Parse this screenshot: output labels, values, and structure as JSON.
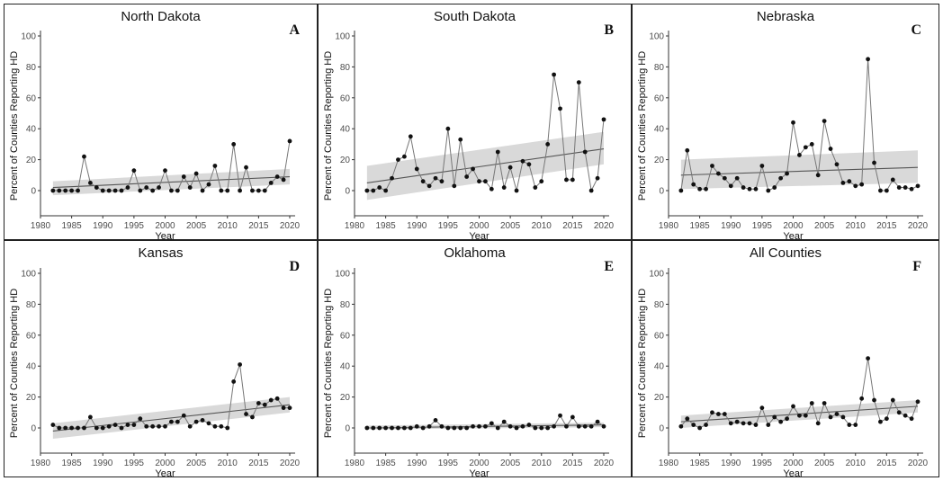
{
  "colors": {
    "points": "#111111",
    "series_line": "#777777",
    "trend_line": "#555555",
    "confidence_band": "#d9d9d9",
    "border": "#222222"
  },
  "chart_data": [
    {
      "type": "line",
      "title": "North Dakota",
      "letter": "A",
      "xlabel": "Year",
      "ylabel": "Percent of Counties Reporting HD",
      "xlim": [
        1980,
        2020
      ],
      "ylim": [
        0,
        100
      ],
      "xticks": [
        "1980",
        "1985",
        "1990",
        "1995",
        "2000",
        "2005",
        "2010",
        "2015",
        "2020"
      ],
      "yticks": [
        "0",
        "20",
        "40",
        "60",
        "80",
        "100"
      ],
      "x": [
        1982,
        1983,
        1984,
        1985,
        1986,
        1987,
        1988,
        1989,
        1990,
        1991,
        1992,
        1993,
        1994,
        1995,
        1996,
        1997,
        1998,
        1999,
        2000,
        2001,
        2002,
        2003,
        2004,
        2005,
        2006,
        2007,
        2008,
        2009,
        2010,
        2011,
        2012,
        2013,
        2014,
        2015,
        2016,
        2017,
        2018,
        2019,
        2020
      ],
      "y": [
        0,
        0,
        0,
        0,
        0,
        22,
        5,
        2,
        0,
        0,
        0,
        0,
        2,
        13,
        0,
        2,
        0,
        2,
        13,
        0,
        0,
        9,
        2,
        11,
        0,
        4,
        16,
        0,
        0,
        30,
        0,
        15,
        0,
        0,
        0,
        5,
        9,
        7,
        32
      ],
      "trend": {
        "start": [
          1982,
          2
        ],
        "end": [
          2020,
          9
        ]
      },
      "ci_band": {
        "lower_start": -3,
        "upper_start": 6,
        "lower_end": 4,
        "upper_end": 14
      },
      "grid": false,
      "legend": "none"
    },
    {
      "type": "line",
      "title": "South Dakota",
      "letter": "B",
      "xlabel": "Year",
      "ylabel": "Percent of Counties Reporting HD",
      "xlim": [
        1980,
        2020
      ],
      "ylim": [
        0,
        100
      ],
      "xticks": [
        "1980",
        "1985",
        "1990",
        "1995",
        "2000",
        "2005",
        "2010",
        "2015",
        "2020"
      ],
      "yticks": [
        "0",
        "20",
        "40",
        "60",
        "80",
        "100"
      ],
      "x": [
        1982,
        1983,
        1984,
        1985,
        1986,
        1987,
        1988,
        1989,
        1990,
        1991,
        1992,
        1993,
        1994,
        1995,
        1996,
        1997,
        1998,
        1999,
        2000,
        2001,
        2002,
        2003,
        2004,
        2005,
        2006,
        2007,
        2008,
        2009,
        2010,
        2011,
        2012,
        2013,
        2014,
        2015,
        2016,
        2017,
        2018,
        2019,
        2020
      ],
      "y": [
        0,
        0,
        2,
        0,
        8,
        20,
        22,
        35,
        14,
        6,
        3,
        8,
        6,
        40,
        3,
        33,
        9,
        14,
        6,
        6,
        1,
        25,
        2,
        15,
        0,
        19,
        17,
        2,
        6,
        30,
        75,
        53,
        7,
        7,
        70,
        25,
        0,
        8,
        46
      ],
      "trend": {
        "start": [
          1982,
          5
        ],
        "end": [
          2020,
          27
        ]
      },
      "ci_band": {
        "lower_start": -6,
        "upper_start": 16,
        "lower_end": 17,
        "upper_end": 38
      },
      "grid": false,
      "legend": "none"
    },
    {
      "type": "line",
      "title": "Nebraska",
      "letter": "C",
      "xlabel": "Year",
      "ylabel": "Percent of Counties Reporting HD",
      "xlim": [
        1980,
        2020
      ],
      "ylim": [
        0,
        100
      ],
      "xticks": [
        "1980",
        "1985",
        "1990",
        "1995",
        "2000",
        "2005",
        "2010",
        "2015",
        "2020"
      ],
      "yticks": [
        "0",
        "20",
        "40",
        "60",
        "80",
        "100"
      ],
      "x": [
        1982,
        1983,
        1984,
        1985,
        1986,
        1987,
        1988,
        1989,
        1990,
        1991,
        1992,
        1993,
        1994,
        1995,
        1996,
        1997,
        1998,
        1999,
        2000,
        2001,
        2002,
        2003,
        2004,
        2005,
        2006,
        2007,
        2008,
        2009,
        2010,
        2011,
        2012,
        2013,
        2014,
        2015,
        2016,
        2017,
        2018,
        2019,
        2020
      ],
      "y": [
        0,
        26,
        4,
        1,
        1,
        16,
        11,
        8,
        3,
        8,
        2,
        1,
        1,
        16,
        0,
        2,
        8,
        11,
        44,
        23,
        28,
        30,
        10,
        45,
        27,
        17,
        5,
        6,
        3,
        4,
        85,
        18,
        0,
        0,
        7,
        2,
        2,
        1,
        3
      ],
      "trend": {
        "start": [
          1982,
          10
        ],
        "end": [
          2020,
          15
        ]
      },
      "ci_band": {
        "lower_start": 1,
        "upper_start": 20,
        "lower_end": 5,
        "upper_end": 26
      },
      "grid": false,
      "legend": "none"
    },
    {
      "type": "line",
      "title": "Kansas",
      "letter": "D",
      "xlabel": "Year",
      "ylabel": "Percent of Counties Reporting HD",
      "xlim": [
        1980,
        2020
      ],
      "ylim": [
        0,
        100
      ],
      "xticks": [
        "1980",
        "1985",
        "1990",
        "1995",
        "2000",
        "2005",
        "2010",
        "2015",
        "2020"
      ],
      "yticks": [
        "0",
        "20",
        "40",
        "60",
        "80",
        "100"
      ],
      "x": [
        1982,
        1983,
        1984,
        1985,
        1986,
        1987,
        1988,
        1989,
        1990,
        1991,
        1992,
        1993,
        1994,
        1995,
        1996,
        1997,
        1998,
        1999,
        2000,
        2001,
        2002,
        2003,
        2004,
        2005,
        2006,
        2007,
        2008,
        2009,
        2010,
        2011,
        2012,
        2013,
        2014,
        2015,
        2016,
        2017,
        2018,
        2019,
        2020
      ],
      "y": [
        2,
        0,
        0,
        0,
        0,
        0,
        7,
        0,
        0,
        1,
        2,
        0,
        2,
        2,
        6,
        1,
        1,
        1,
        1,
        4,
        4,
        8,
        1,
        4,
        5,
        3,
        1,
        1,
        0,
        30,
        41,
        9,
        7,
        16,
        15,
        18,
        19,
        13,
        13
      ],
      "trend": {
        "start": [
          1982,
          -2
        ],
        "end": [
          2020,
          15
        ]
      },
      "ci_band": {
        "lower_start": -7,
        "upper_start": 3,
        "lower_end": 10,
        "upper_end": 20
      },
      "grid": false,
      "legend": "none"
    },
    {
      "type": "line",
      "title": "Oklahoma",
      "letter": "E",
      "xlabel": "Year",
      "ylabel": "Percent of Counties Reporting HD",
      "xlim": [
        1980,
        2020
      ],
      "ylim": [
        0,
        100
      ],
      "xticks": [
        "1980",
        "1985",
        "1990",
        "1995",
        "2000",
        "2005",
        "2010",
        "2015",
        "2020"
      ],
      "yticks": [
        "0",
        "20",
        "40",
        "60",
        "80",
        "100"
      ],
      "x": [
        1982,
        1983,
        1984,
        1985,
        1986,
        1987,
        1988,
        1989,
        1990,
        1991,
        1992,
        1993,
        1994,
        1995,
        1996,
        1997,
        1998,
        1999,
        2000,
        2001,
        2002,
        2003,
        2004,
        2005,
        2006,
        2007,
        2008,
        2009,
        2010,
        2011,
        2012,
        2013,
        2014,
        2015,
        2016,
        2017,
        2018,
        2019,
        2020
      ],
      "y": [
        0,
        0,
        0,
        0,
        0,
        0,
        0,
        0,
        1,
        0,
        1,
        5,
        1,
        0,
        0,
        0,
        0,
        1,
        1,
        1,
        3,
        0,
        4,
        1,
        0,
        1,
        2,
        0,
        0,
        0,
        1,
        8,
        1,
        7,
        1,
        1,
        1,
        4,
        1
      ],
      "trend": {
        "start": [
          1982,
          0
        ],
        "end": [
          2020,
          2
        ]
      },
      "ci_band": {
        "lower_start": -1,
        "upper_start": 1.5,
        "lower_end": 0.5,
        "upper_end": 3.5
      },
      "grid": false,
      "legend": "none"
    },
    {
      "type": "line",
      "title": "All Counties",
      "letter": "F",
      "xlabel": "Year",
      "ylabel": "Percent of Counties Reporting HD",
      "xlim": [
        1980,
        2020
      ],
      "ylim": [
        0,
        100
      ],
      "xticks": [
        "1980",
        "1985",
        "1990",
        "1995",
        "2000",
        "2005",
        "2010",
        "2015",
        "2020"
      ],
      "yticks": [
        "0",
        "20",
        "40",
        "60",
        "80",
        "100"
      ],
      "x": [
        1982,
        1983,
        1984,
        1985,
        1986,
        1987,
        1988,
        1989,
        1990,
        1991,
        1992,
        1993,
        1994,
        1995,
        1996,
        1997,
        1998,
        1999,
        2000,
        2001,
        2002,
        2003,
        2004,
        2005,
        2006,
        2007,
        2008,
        2009,
        2010,
        2011,
        2012,
        2013,
        2014,
        2015,
        2016,
        2017,
        2018,
        2019,
        2020
      ],
      "y": [
        1,
        6,
        2,
        0,
        2,
        10,
        9,
        9,
        3,
        4,
        3,
        3,
        2,
        13,
        2,
        7,
        4,
        6,
        14,
        8,
        8,
        16,
        3,
        16,
        7,
        9,
        7,
        2,
        2,
        19,
        45,
        18,
        4,
        6,
        18,
        10,
        8,
        6,
        17
      ],
      "trend": {
        "start": [
          1982,
          4
        ],
        "end": [
          2020,
          14
        ]
      },
      "ci_band": {
        "lower_start": 0,
        "upper_start": 8,
        "lower_end": 10,
        "upper_end": 18
      },
      "grid": false,
      "legend": "none"
    }
  ]
}
